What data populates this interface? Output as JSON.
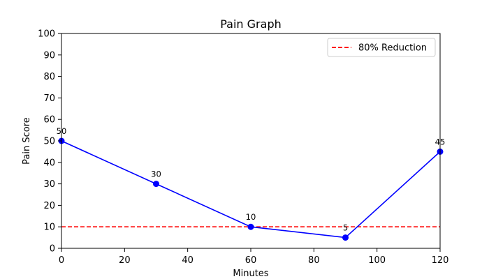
{
  "chart_data": {
    "type": "line",
    "title": "Pain Graph",
    "xlabel": "Minutes",
    "ylabel": "Pain Score",
    "xlim": [
      0,
      120
    ],
    "ylim": [
      0,
      100
    ],
    "x_ticks": [
      0,
      20,
      40,
      60,
      80,
      100,
      120
    ],
    "y_ticks": [
      0,
      10,
      20,
      30,
      40,
      50,
      60,
      70,
      80,
      90,
      100
    ],
    "grid": false,
    "legend_position": "top-right",
    "series": [
      {
        "x": [
          0,
          30,
          60,
          90,
          120
        ],
        "y": [
          50,
          30,
          10,
          5,
          45
        ],
        "data_labels": [
          "50",
          "30",
          "10",
          "5",
          "45"
        ],
        "color": "#0000ff",
        "marker": "circle"
      }
    ],
    "reference_lines": [
      {
        "name": "80% Reduction",
        "y": 10,
        "color": "#ff0000",
        "style": "dashed"
      }
    ]
  }
}
